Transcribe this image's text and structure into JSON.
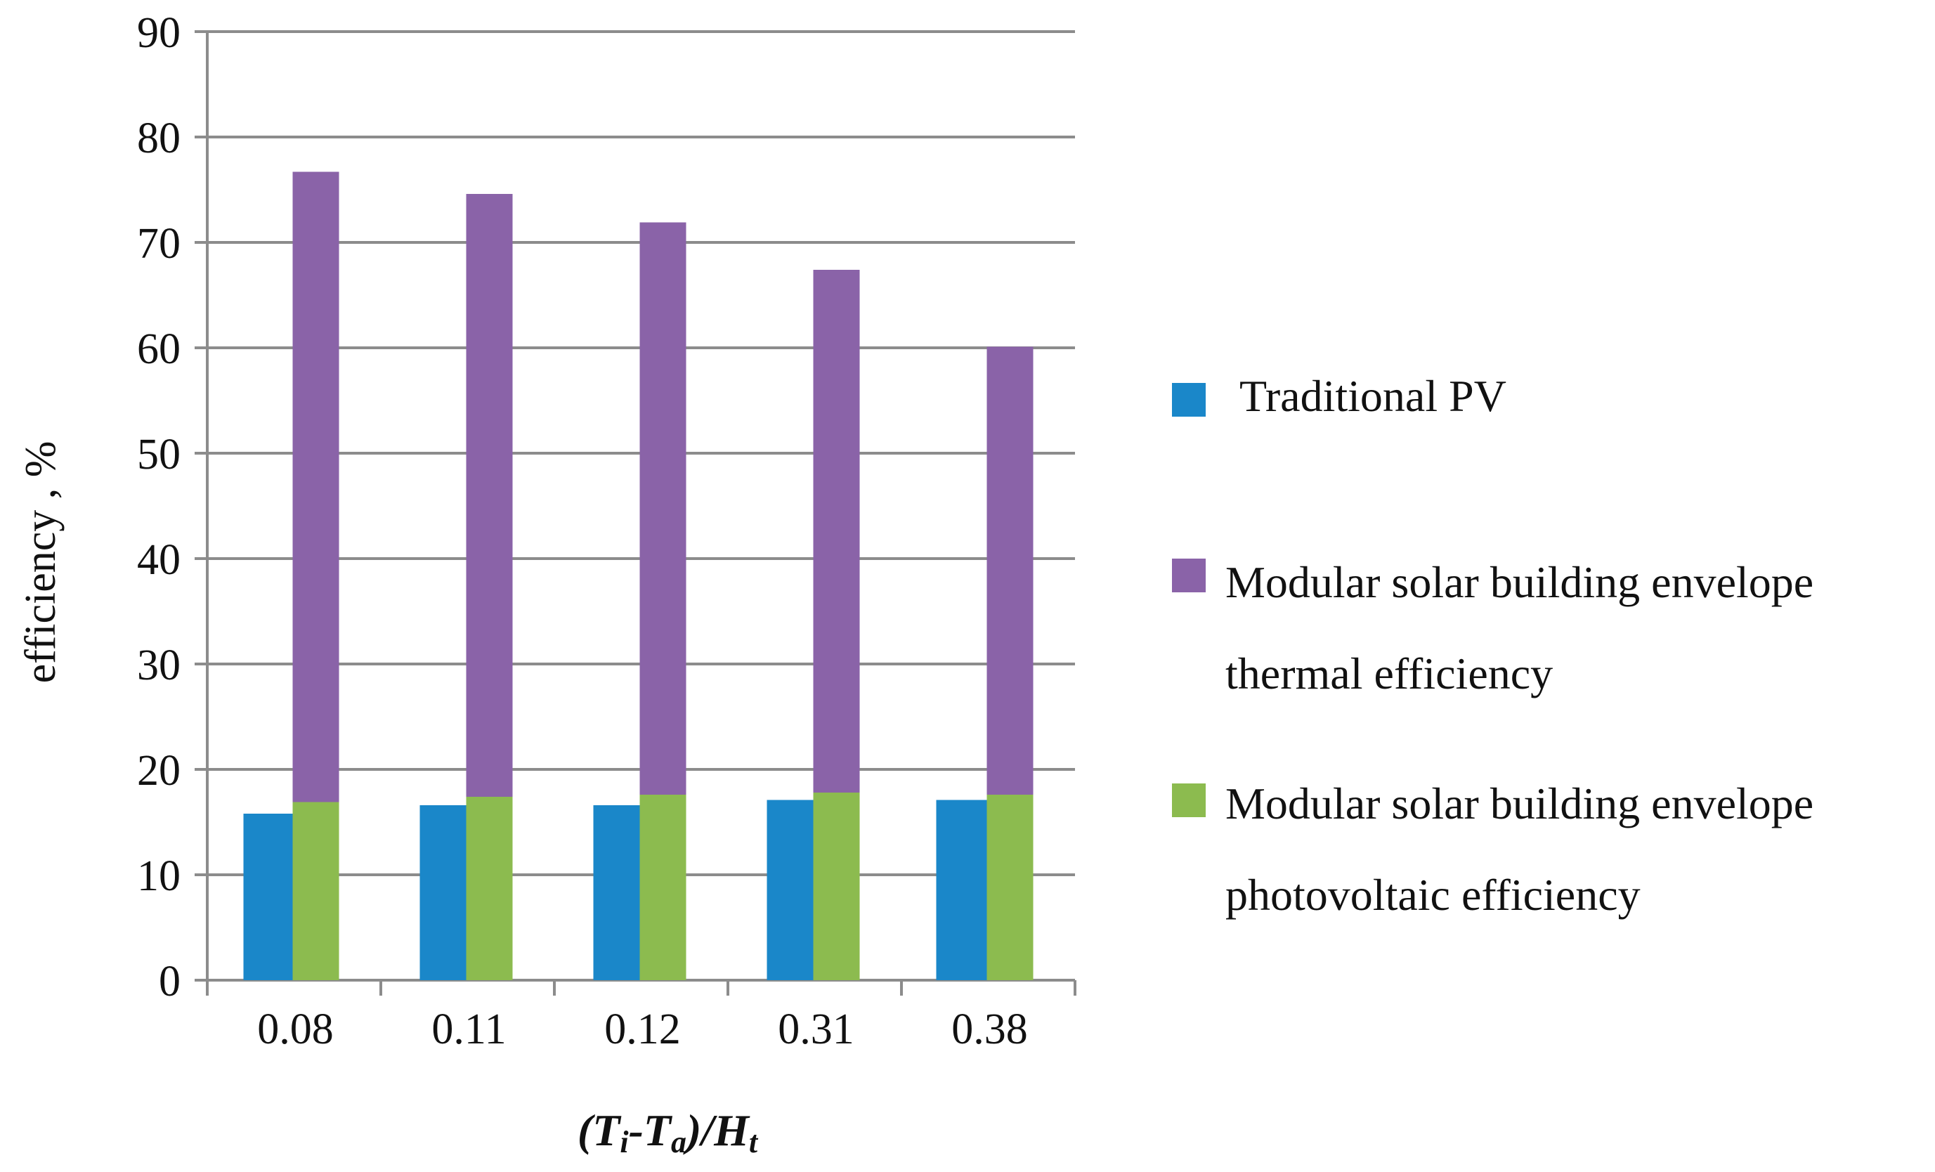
{
  "chart_data": {
    "type": "bar",
    "title": "",
    "xlabel_parts": [
      "(T",
      "i",
      "-T",
      "a",
      ")/H",
      "t"
    ],
    "ylabel": "efficiency , %",
    "categories": [
      "0.08",
      "0.11",
      "0.12",
      "0.31",
      "0.38"
    ],
    "ylim": [
      0,
      90
    ],
    "yticks": [
      0,
      10,
      20,
      30,
      40,
      50,
      60,
      70,
      80,
      90
    ],
    "grid": true,
    "legend_position": "right",
    "series": [
      {
        "name": "Traditional PV",
        "legend_lines": [
          "Traditional PV"
        ],
        "color": "#1a87c9",
        "values": [
          15.8,
          16.6,
          16.6,
          17.1,
          17.1
        ]
      },
      {
        "name": "Modular solar building envelope thermal efficiency",
        "legend_lines": [
          "Modular solar building envelope",
          "thermal efficiency"
        ],
        "color": "#8a63a8",
        "values": [
          76.7,
          74.6,
          71.9,
          67.4,
          60.1
        ]
      },
      {
        "name": "Modular solar building envelope photovoltaic efficiency",
        "legend_lines": [
          "Modular solar building envelope",
          "photovoltaic efficiency"
        ],
        "color": "#8cbb4f",
        "values": [
          16.9,
          17.4,
          17.6,
          17.8,
          17.6
        ]
      }
    ]
  }
}
